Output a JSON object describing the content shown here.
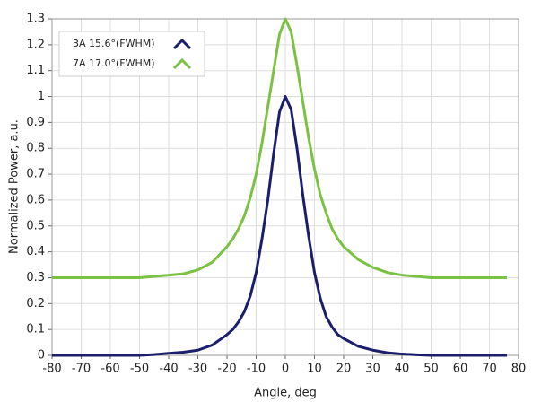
{
  "chart_data": {
    "type": "line",
    "xlabel": "Angle, deg",
    "ylabel": "Normalized Power, a.u.",
    "x": [
      -80,
      -70,
      -60,
      -50,
      -45,
      -40,
      -35,
      -30,
      -25,
      -20,
      -18,
      -16,
      -14,
      -12,
      -10,
      -8,
      -6,
      -4,
      -2,
      0,
      2,
      4,
      6,
      8,
      10,
      12,
      14,
      16,
      18,
      20,
      25,
      30,
      35,
      40,
      45,
      50,
      60,
      70,
      76
    ],
    "series": [
      {
        "name": "3A 15.6°(FWHM)",
        "color": "#1b1f6b",
        "values": [
          0,
          0,
          0,
          0,
          0.003,
          0.008,
          0.012,
          0.02,
          0.04,
          0.08,
          0.1,
          0.13,
          0.17,
          0.23,
          0.32,
          0.45,
          0.6,
          0.78,
          0.94,
          1.0,
          0.95,
          0.8,
          0.62,
          0.46,
          0.32,
          0.22,
          0.15,
          0.11,
          0.08,
          0.065,
          0.035,
          0.02,
          0.01,
          0.005,
          0.002,
          0,
          0,
          0,
          0
        ]
      },
      {
        "name": "7A 17.0°(FWHM)",
        "color": "#7cc242",
        "values": [
          0.3,
          0.3,
          0.3,
          0.3,
          0.305,
          0.31,
          0.315,
          0.33,
          0.36,
          0.42,
          0.45,
          0.49,
          0.54,
          0.61,
          0.7,
          0.82,
          0.96,
          1.1,
          1.24,
          1.3,
          1.25,
          1.12,
          0.98,
          0.84,
          0.72,
          0.62,
          0.55,
          0.49,
          0.45,
          0.42,
          0.37,
          0.34,
          0.32,
          0.31,
          0.305,
          0.3,
          0.3,
          0.3,
          0.3
        ]
      }
    ],
    "xlim": [
      -80,
      80
    ],
    "xticks": [
      -80,
      -70,
      -60,
      -50,
      -40,
      -30,
      -20,
      -10,
      0,
      10,
      20,
      30,
      40,
      50,
      60,
      70,
      80
    ],
    "ylim": [
      0,
      1.3
    ],
    "yticks": [
      0,
      0.1,
      0.2,
      0.3,
      0.4,
      0.5,
      0.6,
      0.7,
      0.8,
      0.9,
      1,
      1.1,
      1.2,
      1.3
    ],
    "grid": true,
    "legend": "upper-left"
  }
}
